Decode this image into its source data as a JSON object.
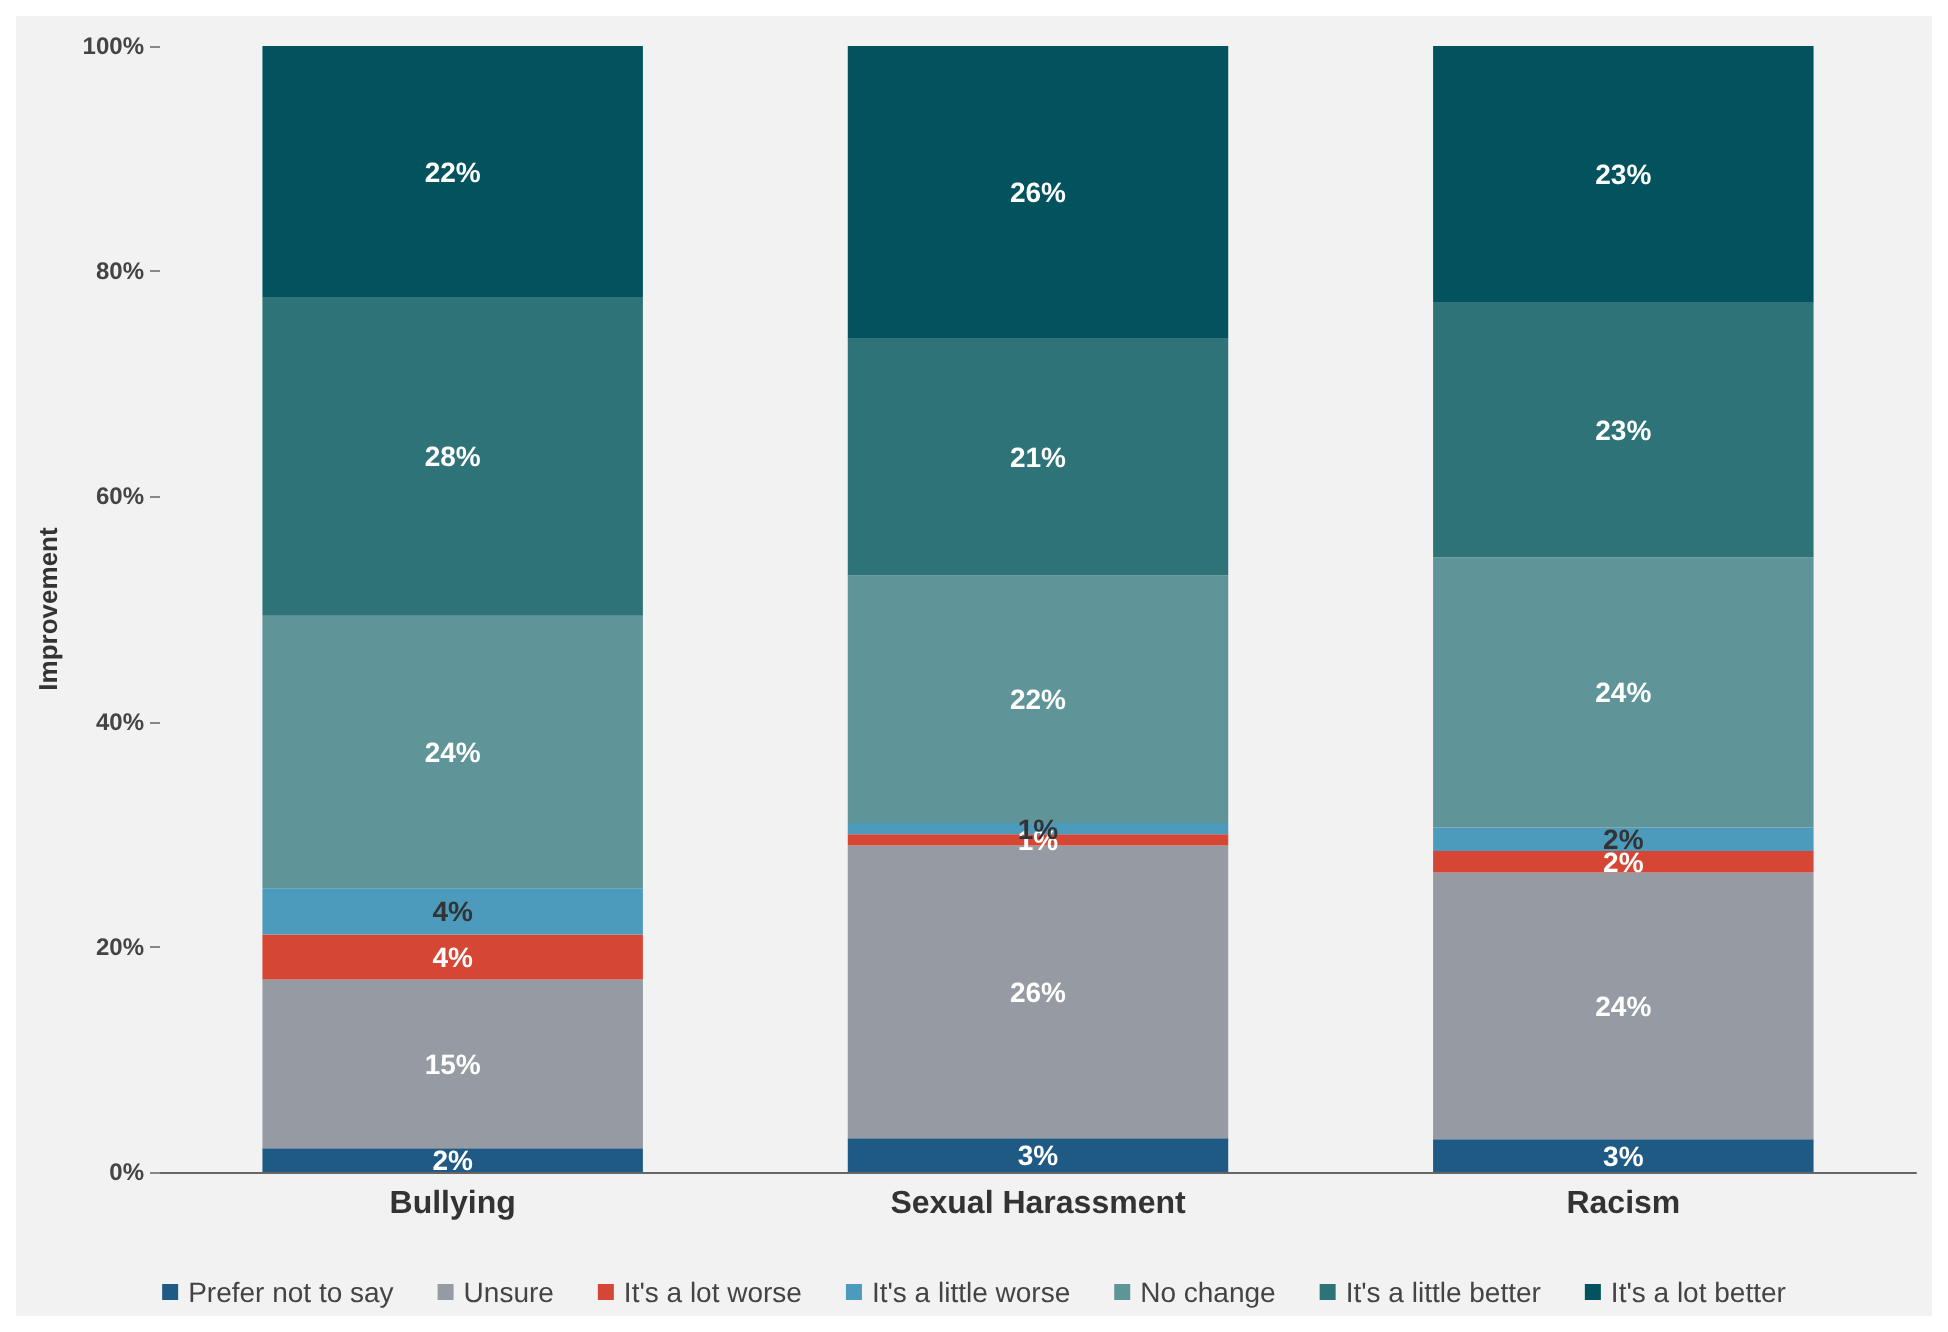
{
  "chart_data": {
    "type": "bar",
    "stacked": true,
    "ylabel": "Improvement",
    "categories": [
      "Bullying",
      "Sexual Harassment",
      "Racism"
    ],
    "ylim": [
      0,
      100
    ],
    "yticks": [
      {
        "value": 0,
        "label": "0%"
      },
      {
        "value": 20,
        "label": "20%"
      },
      {
        "value": 40,
        "label": "40%"
      },
      {
        "value": 60,
        "label": "60%"
      },
      {
        "value": 80,
        "label": "80%"
      },
      {
        "value": 100,
        "label": "100%"
      }
    ],
    "grid": false,
    "legend": "bottom",
    "series": [
      {
        "name": "Prefer not to say",
        "color": "#1f5a85",
        "values": [
          2.1,
          3,
          2.9
        ],
        "value_labels": [
          "2%",
          "3%",
          "3%"
        ]
      },
      {
        "name": "Unsure",
        "color": "#969ba3",
        "values": [
          15,
          26,
          23.7
        ],
        "value_labels": [
          "15%",
          "26%",
          "24%"
        ]
      },
      {
        "name": "It's a lot worse",
        "color": "#d54634",
        "values": [
          4,
          1,
          1.9
        ],
        "value_labels": [
          "4%",
          "1%",
          "2%"
        ]
      },
      {
        "name": "It's a little worse",
        "color": "#4c9bbd",
        "values": [
          4.1,
          1,
          2.1
        ],
        "value_labels": [
          "4%",
          "1%",
          "2%"
        ]
      },
      {
        "name": "No change",
        "color": "#5f9499",
        "values": [
          24.2,
          22,
          24
        ],
        "value_labels": [
          "24%",
          "22%",
          "24%"
        ]
      },
      {
        "name": "It's a little better",
        "color": "#2e7378",
        "values": [
          28.3,
          21,
          22.6
        ],
        "value_labels": [
          "28%",
          "21%",
          "23%"
        ]
      },
      {
        "name": "It's a lot better",
        "color": "#02535e",
        "values": [
          22.3,
          26,
          22.8
        ],
        "value_labels": [
          "22%",
          "26%",
          "23%"
        ]
      }
    ]
  }
}
